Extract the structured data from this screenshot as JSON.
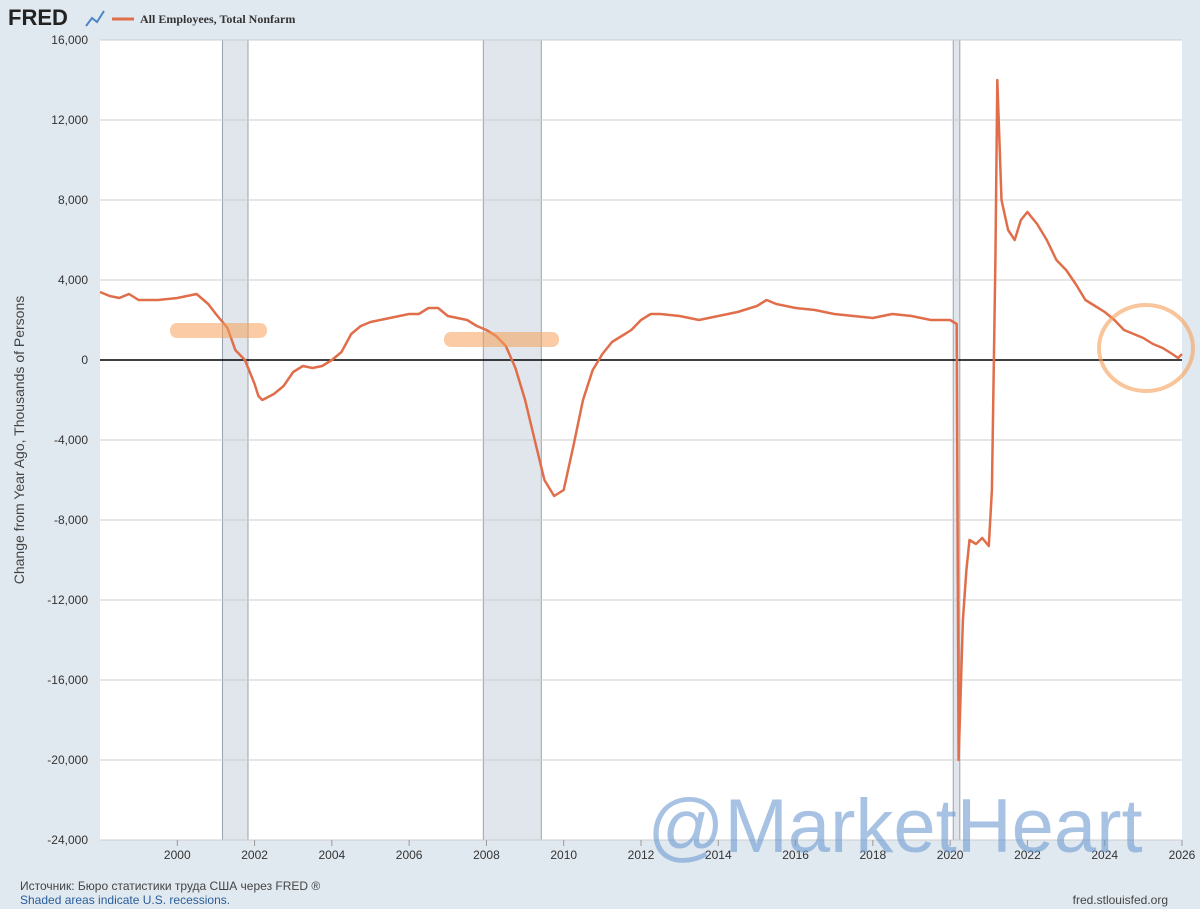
{
  "brand": "FRED",
  "chart_data": {
    "type": "line",
    "y_label": "Change from Year Ago, Thousands of Persons",
    "xlim": [
      1998,
      2026
    ],
    "xticks": [
      2000,
      2002,
      2004,
      2006,
      2008,
      2010,
      2012,
      2014,
      2016,
      2018,
      2020,
      2022,
      2024,
      2026
    ],
    "ylim": [
      -24000,
      16000
    ],
    "yticks": [
      {
        "value": -24000,
        "label": "-24,000"
      },
      {
        "value": -20000,
        "label": "-20,000"
      },
      {
        "value": -16000,
        "label": "-16,000"
      },
      {
        "value": -12000,
        "label": "-12,000"
      },
      {
        "value": -8000,
        "label": "-8,000"
      },
      {
        "value": -4000,
        "label": "-4,000"
      },
      0,
      {
        "value": 4000,
        "label": "4,000"
      },
      {
        "value": 8000,
        "label": "8,000"
      },
      {
        "value": 12000,
        "label": "12,000"
      },
      {
        "value": 16000,
        "label": "16,000"
      }
    ],
    "grid": true,
    "recessions": [
      [
        2001.17,
        2001.83
      ],
      [
        2007.92,
        2009.42
      ],
      [
        2020.08,
        2020.25
      ]
    ],
    "x": [
      1998.0,
      1998.25,
      1998.5,
      1998.75,
      1999.0,
      1999.5,
      2000.0,
      2000.5,
      2000.8,
      2001.0,
      2001.3,
      2001.5,
      2001.75,
      2002.0,
      2002.1,
      2002.2,
      2002.5,
      2002.75,
      2003.0,
      2003.25,
      2003.5,
      2003.75,
      2004.0,
      2004.25,
      2004.5,
      2004.75,
      2005.0,
      2005.5,
      2006.0,
      2006.25,
      2006.5,
      2006.75,
      2007.0,
      2007.5,
      2007.75,
      2008.0,
      2008.25,
      2008.5,
      2008.75,
      2009.0,
      2009.25,
      2009.5,
      2009.75,
      2010.0,
      2010.25,
      2010.5,
      2010.75,
      2011.0,
      2011.25,
      2011.5,
      2011.75,
      2012.0,
      2012.25,
      2012.5,
      2013.0,
      2013.5,
      2014.0,
      2014.5,
      2015.0,
      2015.25,
      2015.5,
      2016.0,
      2016.5,
      2017.0,
      2017.5,
      2018.0,
      2018.5,
      2019.0,
      2019.5,
      2020.0,
      2020.17,
      2020.22,
      2020.33,
      2020.42,
      2020.5,
      2020.67,
      2020.83,
      2021.0,
      2021.08,
      2021.17,
      2021.22,
      2021.33,
      2021.5,
      2021.67,
      2021.83,
      2022.0,
      2022.25,
      2022.5,
      2022.75,
      2023.0,
      2023.25,
      2023.5,
      2023.75,
      2024.0,
      2024.25,
      2024.5,
      2024.75,
      2025.0,
      2025.25,
      2025.5,
      2025.75,
      2025.9,
      2026.0
    ],
    "series": [
      {
        "name": "All Employees, Total Nonfarm",
        "color": "#e06e4b",
        "values": [
          3400,
          3200,
          3100,
          3300,
          3000,
          3000,
          3100,
          3300,
          2800,
          2300,
          1600,
          500,
          0,
          -1200,
          -1800,
          -2000,
          -1700,
          -1300,
          -600,
          -300,
          -400,
          -300,
          0,
          400,
          1300,
          1700,
          1900,
          2100,
          2300,
          2300,
          2600,
          2600,
          2200,
          2000,
          1700,
          1500,
          1200,
          700,
          -400,
          -2000,
          -4000,
          -6000,
          -6800,
          -6500,
          -4300,
          -2000,
          -500,
          300,
          900,
          1200,
          1500,
          2000,
          2300,
          2300,
          2200,
          2000,
          2200,
          2400,
          2700,
          3000,
          2800,
          2600,
          2500,
          2300,
          2200,
          2100,
          2300,
          2200,
          2000,
          2000,
          1800,
          -20000,
          -13000,
          -10500,
          -9000,
          -9200,
          -8900,
          -9300,
          -6500,
          5000,
          14000,
          8000,
          6500,
          6000,
          7000,
          7400,
          6800,
          6000,
          5000,
          4500,
          3800,
          3000,
          2700,
          2400,
          2000,
          1500,
          1300,
          1100,
          800,
          600,
          300,
          100,
          300
        ]
      }
    ]
  },
  "footer": {
    "source": "Источник: Бюро статистики труда США через FRED ®",
    "note": "Shaded areas indicate U.S. recessions.",
    "site": "fred.stlouisfed.org"
  },
  "watermark": "@MarketHeart"
}
